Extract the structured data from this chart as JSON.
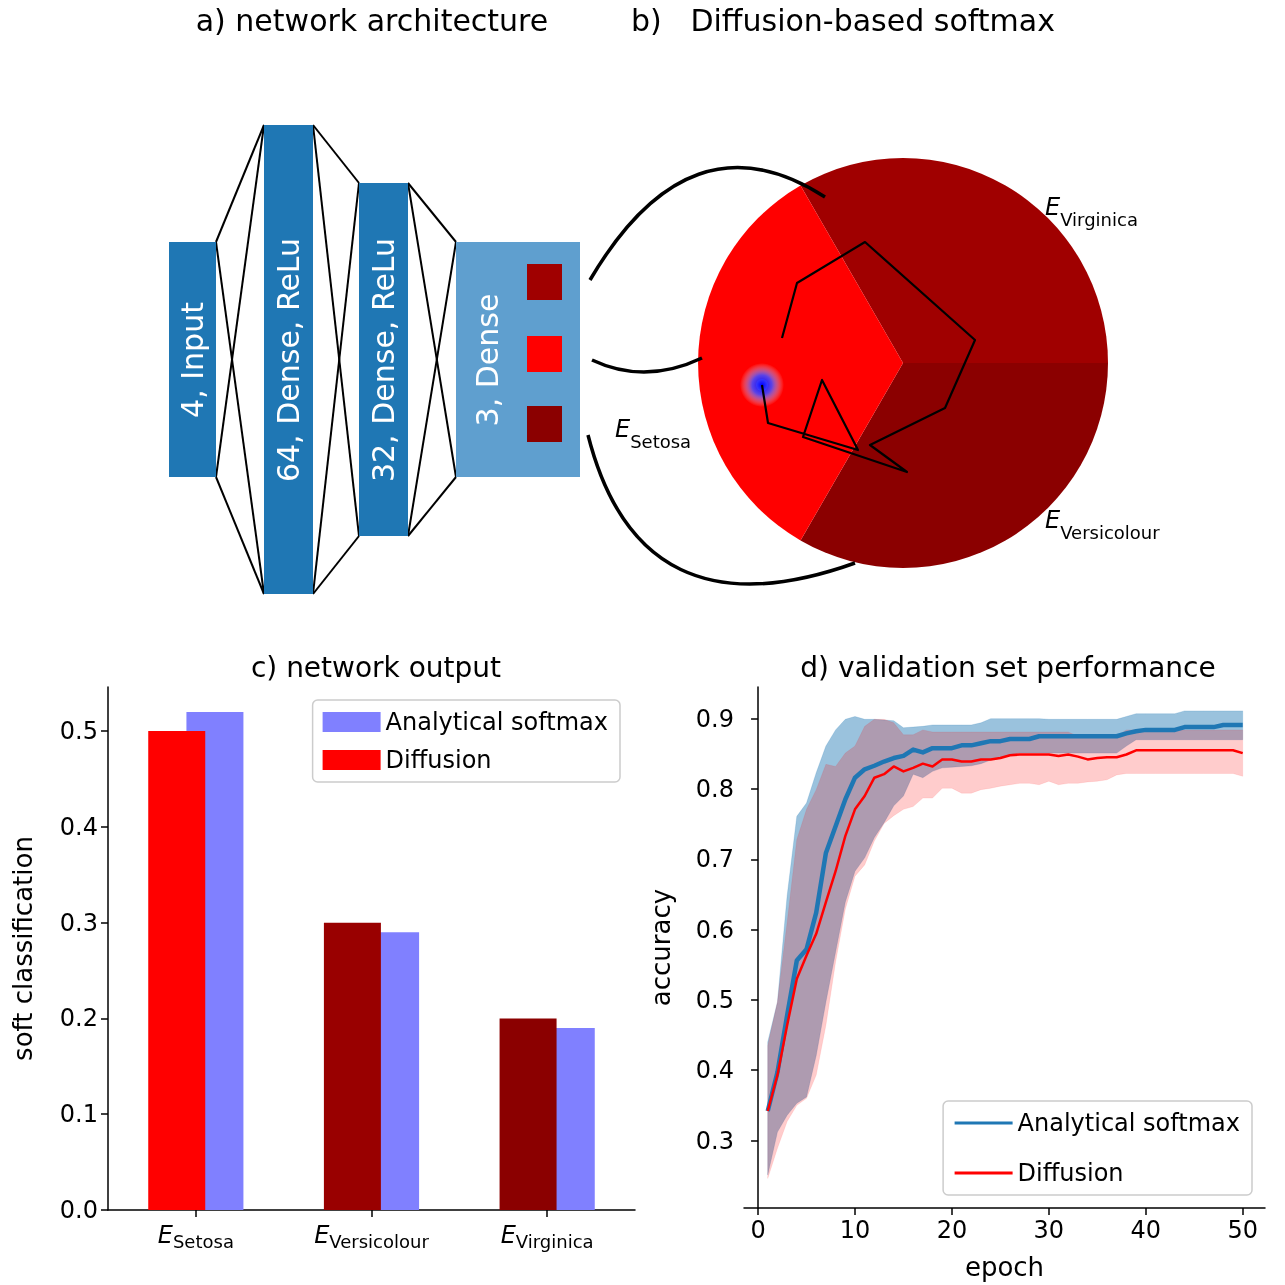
{
  "chart_data": [
    {
      "type": "other",
      "title": "a) network architecture",
      "annotations": [
        "4, Input",
        "64, Dense, ReLu",
        "32, Dense, ReLu",
        "3, Dense"
      ]
    },
    {
      "type": "other",
      "title": "b)   Diffusion-based softmax",
      "annotations": [
        "E$_{Virginica}$",
        "E$_{Setosa}$",
        "E$_{Versicolour}$"
      ]
    },
    {
      "type": "bar",
      "title": "c) network output",
      "ylabel": "soft classification",
      "categories": [
        "E$_{Setosa}$",
        "E$_{Versicolour}$",
        "E$_{Virginica}$"
      ],
      "series": [
        {
          "name": "Diffusion",
          "colors": [
            "#ff0000",
            "#990000",
            "#8b0000"
          ],
          "values": [
            0.5,
            0.3,
            0.2
          ]
        },
        {
          "name": "Analytical softmax",
          "color": "#8080ff",
          "values": [
            0.52,
            0.29,
            0.19
          ]
        }
      ],
      "ylim": [
        0,
        0.546
      ],
      "yticks": [
        {
          "value": 0,
          "label": "0.0"
        },
        0.1,
        0.2,
        0.3,
        0.4,
        0.5
      ],
      "legend": "top right",
      "grid": false
    },
    {
      "type": "line",
      "title": "d) validation set performance",
      "xlabel": "epoch",
      "ylabel": "accuracy",
      "x": [
        1,
        2,
        3,
        4,
        5,
        6,
        7,
        8,
        9,
        10,
        11,
        12,
        13,
        14,
        15,
        16,
        17,
        18,
        19,
        20,
        21,
        22,
        23,
        24,
        25,
        26,
        27,
        28,
        29,
        30,
        31,
        32,
        33,
        34,
        35,
        36,
        37,
        38,
        39,
        40,
        41,
        42,
        43,
        44,
        45,
        46,
        47,
        48,
        49,
        50
      ],
      "series": [
        {
          "name": "Analytical softmax",
          "color": "#1f77b4",
          "values": [
            0.342,
            0.397,
            0.478,
            0.556,
            0.572,
            0.624,
            0.709,
            0.747,
            0.785,
            0.816,
            0.828,
            0.833,
            0.839,
            0.844,
            0.847,
            0.856,
            0.852,
            0.858,
            0.858,
            0.858,
            0.862,
            0.862,
            0.865,
            0.868,
            0.868,
            0.871,
            0.871,
            0.871,
            0.875,
            0.875,
            0.875,
            0.875,
            0.875,
            0.875,
            0.875,
            0.875,
            0.875,
            0.879,
            0.882,
            0.884,
            0.884,
            0.884,
            0.884,
            0.888,
            0.888,
            0.888,
            0.888,
            0.891,
            0.891,
            0.891
          ],
          "lower": [
            0.251,
            0.312,
            0.336,
            0.353,
            0.362,
            0.421,
            0.497,
            0.568,
            0.639,
            0.683,
            0.702,
            0.731,
            0.752,
            0.776,
            0.79,
            0.821,
            0.816,
            0.825,
            0.83,
            0.831,
            0.832,
            0.833,
            0.836,
            0.841,
            0.844,
            0.849,
            0.851,
            0.851,
            0.851,
            0.851,
            0.851,
            0.851,
            0.851,
            0.851,
            0.851,
            0.851,
            0.851,
            0.861,
            0.87,
            0.87,
            0.87,
            0.87,
            0.87,
            0.87,
            0.87,
            0.87,
            0.87,
            0.87,
            0.87,
            0.87
          ],
          "upper": [
            0.44,
            0.497,
            0.648,
            0.761,
            0.78,
            0.823,
            0.861,
            0.884,
            0.899,
            0.903,
            0.899,
            0.899,
            0.898,
            0.897,
            0.887,
            0.888,
            0.889,
            0.891,
            0.891,
            0.891,
            0.891,
            0.891,
            0.894,
            0.9,
            0.9,
            0.9,
            0.9,
            0.9,
            0.9,
            0.899,
            0.899,
            0.899,
            0.899,
            0.899,
            0.899,
            0.899,
            0.899,
            0.903,
            0.907,
            0.907,
            0.907,
            0.907,
            0.907,
            0.911,
            0.911,
            0.911,
            0.911,
            0.911,
            0.911,
            0.911
          ]
        },
        {
          "name": "Diffusion",
          "color": "#ff0000",
          "values": [
            0.342,
            0.393,
            0.464,
            0.53,
            0.563,
            0.594,
            0.639,
            0.683,
            0.733,
            0.771,
            0.79,
            0.816,
            0.821,
            0.832,
            0.825,
            0.83,
            0.836,
            0.832,
            0.842,
            0.842,
            0.839,
            0.839,
            0.842,
            0.842,
            0.844,
            0.848,
            0.849,
            0.849,
            0.849,
            0.849,
            0.847,
            0.849,
            0.846,
            0.842,
            0.844,
            0.845,
            0.845,
            0.849,
            0.855,
            0.855,
            0.855,
            0.855,
            0.855,
            0.855,
            0.855,
            0.855,
            0.855,
            0.855,
            0.855,
            0.851
          ],
          "lower": [
            0.246,
            0.289,
            0.327,
            0.35,
            0.36,
            0.393,
            0.464,
            0.554,
            0.629,
            0.676,
            0.692,
            0.726,
            0.751,
            0.762,
            0.771,
            0.775,
            0.787,
            0.787,
            0.801,
            0.801,
            0.794,
            0.794,
            0.799,
            0.801,
            0.804,
            0.806,
            0.808,
            0.808,
            0.806,
            0.811,
            0.806,
            0.808,
            0.808,
            0.81,
            0.811,
            0.813,
            0.82,
            0.822,
            0.822,
            0.822,
            0.822,
            0.822,
            0.822,
            0.822,
            0.822,
            0.822,
            0.822,
            0.822,
            0.822,
            0.818
          ],
          "upper": [
            0.435,
            0.497,
            0.61,
            0.728,
            0.771,
            0.799,
            0.835,
            0.832,
            0.851,
            0.861,
            0.889,
            0.899,
            0.899,
            0.894,
            0.877,
            0.877,
            0.884,
            0.881,
            0.881,
            0.881,
            0.881,
            0.881,
            0.881,
            0.881,
            0.881,
            0.881,
            0.881,
            0.881,
            0.881,
            0.881,
            0.881,
            0.881,
            0.875,
            0.875,
            0.875,
            0.875,
            0.875,
            0.884,
            0.884,
            0.884,
            0.884,
            0.884,
            0.884,
            0.884,
            0.884,
            0.884,
            0.884,
            0.884,
            0.884,
            0.884
          ]
        }
      ],
      "xlim": [
        -1.45,
        52.3
      ],
      "xticks": [
        0,
        10,
        20,
        30,
        40,
        50
      ],
      "ylim": [
        0.204,
        0.945
      ],
      "yticks": [
        0.3,
        0.4,
        0.5,
        0.6,
        0.7,
        0.8,
        0.9
      ],
      "legend": "bottom right",
      "grid": false
    }
  ]
}
